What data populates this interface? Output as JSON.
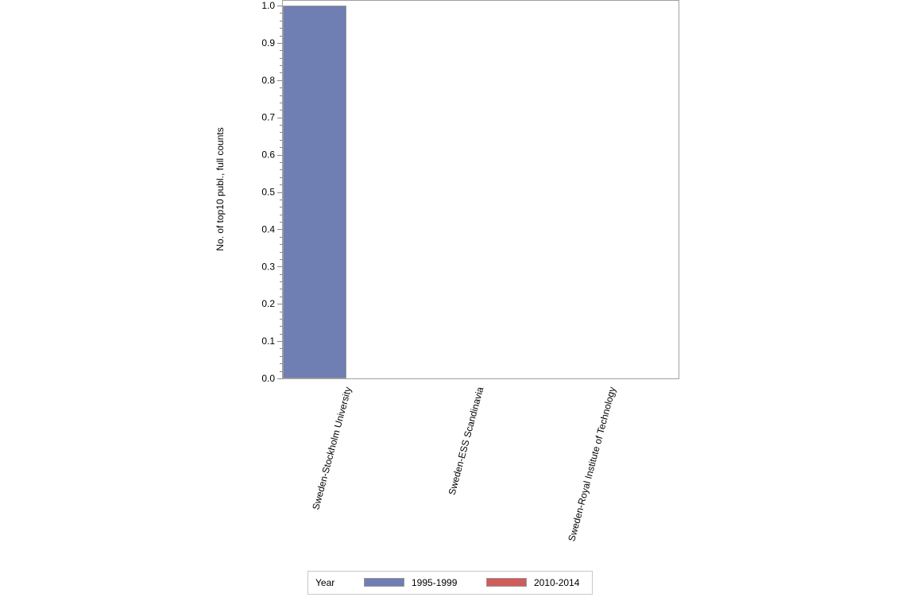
{
  "chart_data": {
    "type": "bar",
    "title": "",
    "xlabel": "",
    "ylabel": "No. of top10 publ., full counts",
    "ylim": [
      0,
      1.0
    ],
    "yticks": [
      "0.0",
      "0.1",
      "0.2",
      "0.3",
      "0.4",
      "0.5",
      "0.6",
      "0.7",
      "0.8",
      "0.9",
      "1.0"
    ],
    "categories": [
      "Sweden-Stockholm University",
      "Sweden-ESS Scandinavia",
      "Sweden-Royal Institute of Technology"
    ],
    "series": [
      {
        "name": "1995-1999",
        "color": "#6f7eb3",
        "values": [
          1,
          0,
          0
        ]
      },
      {
        "name": "2010-2014",
        "color": "#d05b5b",
        "values": [
          0,
          0,
          0
        ]
      }
    ],
    "legend": {
      "title": "Year",
      "position": "bottom"
    }
  }
}
